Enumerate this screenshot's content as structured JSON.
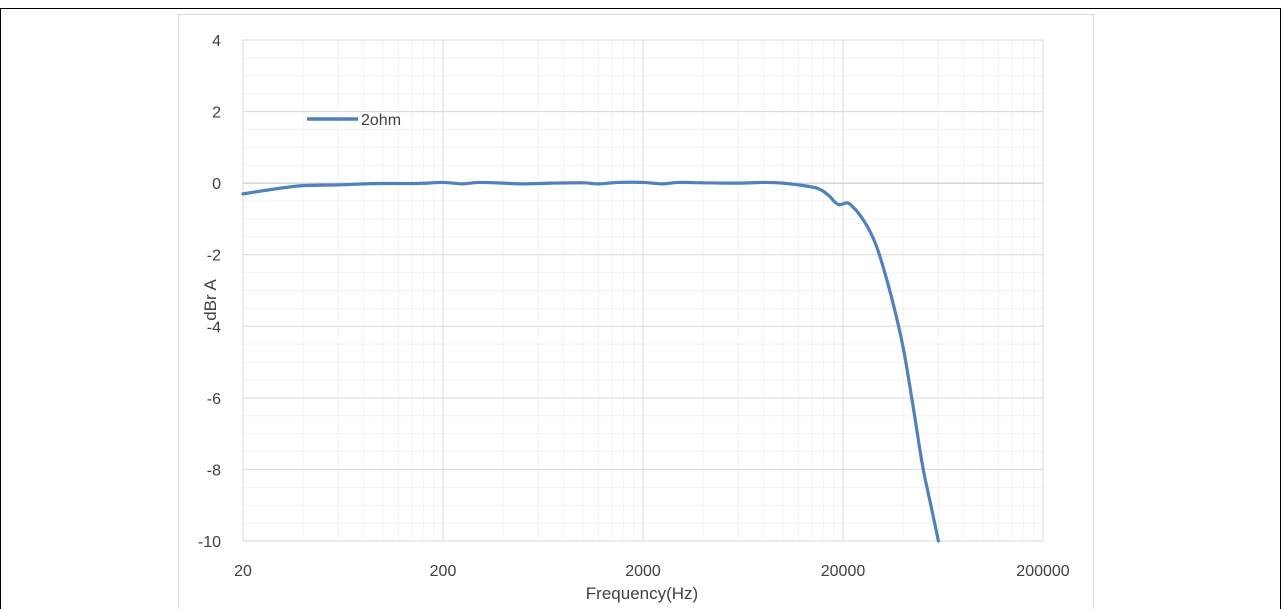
{
  "chart_data": {
    "type": "line",
    "xlabel": "Frequency(Hz)",
    "ylabel": "dBr A",
    "x_scale": "log",
    "xlim": [
      20,
      200000
    ],
    "ylim": [
      -10,
      4
    ],
    "x_ticks": [
      20,
      200,
      2000,
      20000,
      200000
    ],
    "x_tick_labels": [
      "20",
      "200",
      "2000",
      "20000",
      "200000"
    ],
    "y_ticks": [
      4,
      2,
      0,
      -2,
      -4,
      -6,
      -8,
      -10
    ],
    "y_tick_labels": [
      "4",
      "2",
      "0",
      "-2",
      "-4",
      "-6",
      "-8",
      "-10"
    ],
    "grid": true,
    "legend_position": "top-left",
    "series": [
      {
        "name": "2ohm",
        "color": "#4f81bd",
        "x": [
          20,
          30,
          40,
          60,
          80,
          100,
          150,
          200,
          250,
          300,
          400,
          500,
          700,
          1000,
          1200,
          1500,
          2000,
          2500,
          3000,
          4000,
          6000,
          8000,
          10000,
          12000,
          15000,
          17000,
          18000,
          19000,
          20000,
          21000,
          22000,
          24000,
          27000,
          30000,
          35000,
          40000,
          45000,
          50000,
          55000,
          60000
        ],
        "values": [
          -0.3,
          -0.15,
          -0.07,
          -0.05,
          -0.02,
          -0.01,
          -0.01,
          0.02,
          -0.02,
          0.02,
          0.0,
          -0.02,
          0.0,
          0.01,
          -0.02,
          0.02,
          0.02,
          -0.02,
          0.02,
          0.01,
          0.0,
          0.02,
          0.0,
          -0.05,
          -0.15,
          -0.35,
          -0.5,
          -0.6,
          -0.58,
          -0.55,
          -0.62,
          -0.85,
          -1.3,
          -1.9,
          -3.2,
          -4.6,
          -6.3,
          -7.9,
          -9.0,
          -10.0
        ]
      }
    ]
  }
}
